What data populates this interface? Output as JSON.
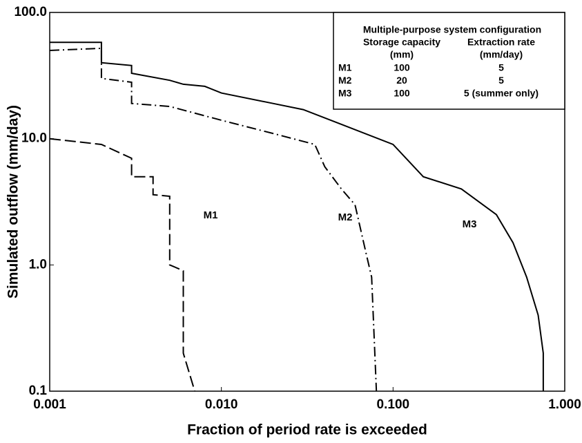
{
  "chart_data": {
    "type": "line",
    "x_label": "Fraction of period rate is exceeded",
    "y_label": "Simulated outflow (mm/day)",
    "xscale": "log",
    "yscale": "log",
    "xlim": [
      0.001,
      1.0
    ],
    "ylim": [
      0.1,
      100.0
    ],
    "xticks": [
      {
        "value": 0.001,
        "label": "0.001"
      },
      {
        "value": 0.01,
        "label": "0.010"
      },
      {
        "value": 0.1,
        "label": "0.100"
      },
      {
        "value": 1.0,
        "label": "1.000"
      }
    ],
    "yticks": [
      0.1,
      {
        "value": 1.0,
        "label": "1.0"
      },
      {
        "value": 10.0,
        "label": "10.0"
      },
      {
        "value": 100.0,
        "label": "100.0"
      }
    ],
    "series": [
      {
        "name": "M1",
        "color": "#000000",
        "style": "dashed",
        "x": [
          0.001,
          0.002,
          0.003,
          0.003,
          0.004,
          0.004,
          0.005,
          0.005,
          0.006,
          0.006,
          0.007
        ],
        "values": [
          10,
          9,
          7,
          5,
          5,
          3.6,
          3.5,
          1.0,
          0.9,
          0.2,
          0.1
        ]
      },
      {
        "name": "M2",
        "color": "#000000",
        "style": "dashdot",
        "x": [
          0.001,
          0.002,
          0.002,
          0.003,
          0.003,
          0.005,
          0.01,
          0.02,
          0.035,
          0.04,
          0.05,
          0.06,
          0.07,
          0.075,
          0.08
        ],
        "values": [
          50,
          52,
          30,
          28,
          19,
          18,
          14,
          11,
          9,
          6,
          4,
          3,
          1.2,
          0.8,
          0.1
        ]
      },
      {
        "name": "M3",
        "color": "#000000",
        "style": "solid",
        "x": [
          0.001,
          0.002,
          0.002,
          0.003,
          0.003,
          0.005,
          0.006,
          0.008,
          0.01,
          0.02,
          0.03,
          0.05,
          0.1,
          0.15,
          0.25,
          0.4,
          0.5,
          0.6,
          0.7,
          0.75,
          0.75
        ],
        "values": [
          58,
          58,
          40,
          38,
          33,
          29,
          27,
          26,
          23,
          19,
          17,
          13,
          9,
          5,
          4,
          2.5,
          1.5,
          0.8,
          0.4,
          0.2,
          0.1
        ]
      }
    ],
    "legend_table": {
      "title": "Multiple-purpose system configuration",
      "columns": [
        "Storage capacity",
        "Extraction rate"
      ],
      "units": [
        "(mm)",
        "(mm/day)"
      ],
      "rows": [
        [
          "M1",
          100,
          5
        ],
        [
          "M2",
          20,
          5
        ],
        [
          "M3",
          100,
          "5 (summer only)"
        ]
      ]
    }
  }
}
